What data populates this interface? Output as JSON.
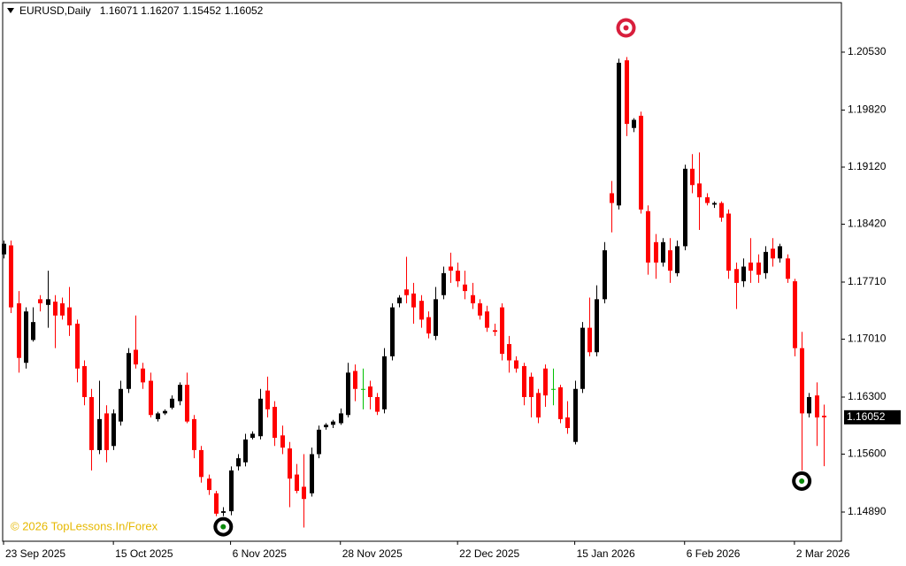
{
  "chart_data": {
    "type": "candlestick",
    "symbol": "EURUSD,Daily",
    "watermark": "© 2026 TopLessons.In/Forex",
    "categories": [
      "23 Sep 2025",
      null,
      null,
      null,
      null,
      null,
      null,
      null,
      null,
      null,
      null,
      null,
      null,
      null,
      null,
      "15 Oct 2025",
      null,
      null,
      null,
      null,
      null,
      null,
      null,
      null,
      null,
      null,
      null,
      null,
      null,
      null,
      null,
      "6 Nov 2025",
      null,
      null,
      null,
      null,
      null,
      null,
      null,
      null,
      null,
      null,
      null,
      null,
      null,
      null,
      "28 Nov 2025",
      null,
      null,
      null,
      null,
      null,
      null,
      null,
      null,
      null,
      null,
      null,
      null,
      null,
      null,
      null,
      "22 Dec 2025",
      null,
      null,
      null,
      null,
      null,
      null,
      null,
      null,
      null,
      null,
      null,
      null,
      null,
      null,
      null,
      "15 Jan 2026",
      null,
      null,
      null,
      null,
      null,
      null,
      null,
      null,
      null,
      null,
      null,
      null,
      null,
      null,
      "6 Feb 2026",
      null,
      null,
      null,
      null,
      null,
      null,
      null,
      null,
      null,
      null,
      null,
      null,
      null,
      null,
      "2 Mar 2026",
      null,
      null,
      null,
      null
    ],
    "open": [
      1.1805,
      1.1816,
      1.1745,
      1.1672,
      1.17,
      1.175,
      1.1743,
      1.1747,
      1.1745,
      1.174,
      1.172,
      1.1668,
      1.163,
      1.1565,
      1.161,
      1.157,
      1.16,
      1.164,
      1.1688,
      1.1665,
      1.165,
      1.1603,
      1.161,
      1.1617,
      1.1625,
      1.1645,
      1.1603,
      1.1565,
      1.153,
      1.1512,
      1.1488,
      1.149,
      1.1545,
      1.155,
      1.158,
      1.1582,
      1.1638,
      1.1618,
      1.1583,
      1.1567,
      1.1535,
      1.152,
      1.1512,
      1.156,
      1.1593,
      1.1596,
      1.1598,
      1.1608,
      1.1662,
      1.164,
      1.1643,
      1.163,
      1.1615,
      1.168,
      1.1745,
      1.1762,
      1.1757,
      1.1748,
      1.1728,
      1.1705,
      1.1755,
      1.179,
      1.1785,
      1.1768,
      1.1755,
      1.1745,
      1.1735,
      1.1712,
      1.174,
      1.1695,
      1.1675,
      1.1668,
      1.1655,
      1.1635,
      1.1665,
      1.164,
      1.1642,
      1.1605,
      1.1575,
      1.164,
      1.1715,
      1.1685,
      1.175,
      1.188,
      1.1865,
      1.2043,
      1.196,
      1.1975,
      1.1858,
      1.182,
      1.1795,
      1.181,
      1.1782,
      1.1815,
      1.191,
      1.1892,
      1.1875,
      1.1866,
      1.1868,
      1.1855,
      1.1787,
      1.1772,
      1.1795,
      1.1795,
      1.1782,
      1.1812,
      1.18,
      1.18,
      1.1772,
      1.169,
      1.161,
      1.1632,
      1.16071
    ],
    "high": [
      1.1822,
      1.1822,
      1.176,
      1.174,
      1.174,
      1.1755,
      1.1785,
      1.1755,
      1.1752,
      1.1765,
      1.1725,
      1.1675,
      1.164,
      1.165,
      1.162,
      1.1615,
      1.165,
      1.169,
      1.173,
      1.1672,
      1.166,
      1.1612,
      1.1615,
      1.1632,
      1.1648,
      1.166,
      1.1608,
      1.157,
      1.1535,
      1.1515,
      1.1495,
      1.1545,
      1.156,
      1.1585,
      1.1588,
      1.164,
      1.1655,
      1.1625,
      1.1595,
      1.1575,
      1.1548,
      1.156,
      1.1568,
      1.1595,
      1.1598,
      1.1602,
      1.1616,
      1.1672,
      1.167,
      1.1665,
      1.165,
      1.1635,
      1.169,
      1.1745,
      1.1755,
      1.1802,
      1.177,
      1.1755,
      1.1735,
      1.1765,
      1.179,
      1.1807,
      1.1795,
      1.1785,
      1.177,
      1.175,
      1.1742,
      1.172,
      1.1745,
      1.1705,
      1.168,
      1.1672,
      1.166,
      1.164,
      1.167,
      1.1665,
      1.1645,
      1.1625,
      1.165,
      1.1722,
      1.1752,
      1.1767,
      1.182,
      1.1895,
      1.2045,
      1.2047,
      1.1972,
      1.198,
      1.1865,
      1.183,
      1.1825,
      1.1825,
      1.1822,
      1.1915,
      1.1928,
      1.193,
      1.188,
      1.187,
      1.187,
      1.186,
      1.1795,
      1.18,
      1.1825,
      1.1805,
      1.1815,
      1.1825,
      1.1818,
      1.1805,
      1.1775,
      1.171,
      1.1635,
      1.1648,
      1.16207
    ],
    "low": [
      1.18,
      1.1733,
      1.166,
      1.1665,
      1.1698,
      1.1735,
      1.1715,
      1.169,
      1.1725,
      1.1705,
      1.1648,
      1.162,
      1.154,
      1.156,
      1.155,
      1.1565,
      1.1595,
      1.1635,
      1.1665,
      1.164,
      1.1605,
      1.16,
      1.1608,
      1.1615,
      1.162,
      1.1598,
      1.1555,
      1.1525,
      1.151,
      1.1484,
      1.1484,
      1.1485,
      1.154,
      1.1545,
      1.1578,
      1.1578,
      1.1605,
      1.157,
      1.156,
      1.1495,
      1.1512,
      1.147,
      1.1508,
      1.1555,
      1.159,
      1.1592,
      1.1596,
      1.1605,
      1.1625,
      1.1615,
      1.1615,
      1.1608,
      1.161,
      1.1675,
      1.174,
      1.1745,
      1.172,
      1.1715,
      1.1702,
      1.17,
      1.175,
      1.177,
      1.1765,
      1.175,
      1.1738,
      1.1725,
      1.171,
      1.1705,
      1.1675,
      1.166,
      1.166,
      1.162,
      1.1605,
      1.1598,
      1.1618,
      1.162,
      1.1598,
      1.1585,
      1.1572,
      1.1635,
      1.168,
      1.168,
      1.1745,
      1.1832,
      1.186,
      1.195,
      1.1955,
      1.1855,
      1.178,
      1.1775,
      1.179,
      1.177,
      1.1778,
      1.181,
      1.188,
      1.1835,
      1.1865,
      1.1862,
      1.1845,
      1.1775,
      1.1738,
      1.1765,
      1.177,
      1.177,
      1.1775,
      1.179,
      1.1795,
      1.177,
      1.168,
      1.154,
      1.1605,
      1.157,
      1.15452
    ],
    "close": [
      1.1818,
      1.174,
      1.1678,
      1.1735,
      1.1722,
      1.1745,
      1.175,
      1.173,
      1.173,
      1.1718,
      1.1665,
      1.163,
      1.1565,
      1.1603,
      1.1565,
      1.161,
      1.164,
      1.1684,
      1.167,
      1.1648,
      1.1608,
      1.161,
      1.1613,
      1.1628,
      1.1645,
      1.16,
      1.1565,
      1.1532,
      1.1516,
      1.1487,
      1.149,
      1.154,
      1.1555,
      1.1578,
      1.1585,
      1.1628,
      1.1615,
      1.158,
      1.1568,
      1.153,
      1.1515,
      1.1505,
      1.156,
      1.159,
      1.1596,
      1.16,
      1.161,
      1.166,
      1.164,
      1.164,
      1.163,
      1.1612,
      1.168,
      1.174,
      1.1752,
      1.1755,
      1.174,
      1.1725,
      1.1708,
      1.175,
      1.1782,
      1.1785,
      1.1772,
      1.176,
      1.1745,
      1.173,
      1.1715,
      1.171,
      1.1683,
      1.1675,
      1.1665,
      1.163,
      1.163,
      1.1605,
      1.1632,
      1.164,
      1.1603,
      1.1592,
      1.164,
      1.1715,
      1.1685,
      1.175,
      1.181,
      1.1868,
      1.204,
      1.1965,
      1.197,
      1.186,
      1.1795,
      1.1795,
      1.182,
      1.1785,
      1.1815,
      1.191,
      1.189,
      1.1875,
      1.1868,
      1.1868,
      1.185,
      1.1785,
      1.177,
      1.179,
      1.1785,
      1.178,
      1.1808,
      1.18,
      1.1815,
      1.1775,
      1.169,
      1.161,
      1.163,
      1.1605,
      1.16052
    ],
    "up_color": "#000000",
    "down_color": "#ff0000",
    "doji_color": "#00c000",
    "ylim": [
      1.14532,
      1.21137
    ],
    "yticks": [
      {
        "value": 1.1489,
        "label": "1.14890"
      },
      {
        "value": 1.156,
        "label": "1.15600"
      },
      {
        "value": 1.163,
        "label": "1.16300"
      },
      {
        "value": 1.1701,
        "label": "1.17010"
      },
      {
        "value": 1.1771,
        "label": "1.17710"
      },
      {
        "value": 1.1842,
        "label": "1.18420"
      },
      {
        "value": 1.1912,
        "label": "1.19120"
      },
      {
        "value": 1.1982,
        "label": "1.19820"
      },
      {
        "value": 1.2053,
        "label": "1.20530"
      }
    ],
    "grid": false
  }
}
